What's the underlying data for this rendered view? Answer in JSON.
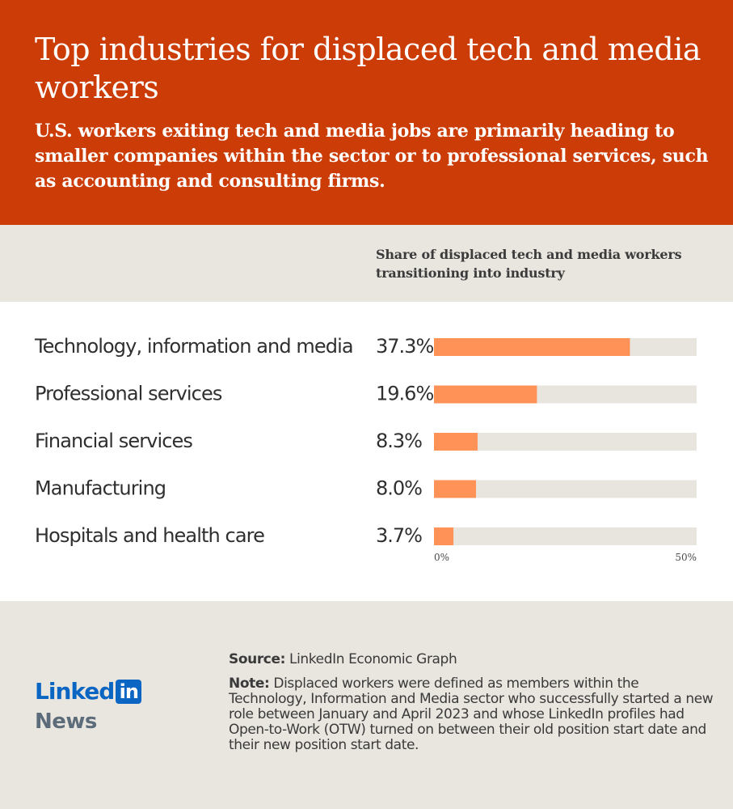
{
  "header": {
    "title": "Top industries for displaced tech and media workers",
    "subtitle": "U.S. workers exiting tech and media jobs are primarily heading to smaller companies within the sector or to professional services, such as accounting and consulting firms."
  },
  "column_header": "Share of displaced tech and media workers transitioning into industry",
  "chart_data": {
    "type": "bar",
    "orientation": "horizontal",
    "categories": [
      "Technology, information and media",
      "Professional services",
      "Financial services",
      "Manufacturing",
      "Hospitals and health care"
    ],
    "values": [
      37.3,
      19.6,
      8.3,
      8.0,
      3.7
    ],
    "value_labels": [
      "37.3%",
      "19.6%",
      "8.3%",
      "8.0%",
      "3.7%"
    ],
    "xlim": [
      0,
      50
    ],
    "x_ticks": [
      "0%",
      "50%"
    ],
    "colors": {
      "bar": "#ff9256",
      "track": "#e8e4de"
    }
  },
  "footer": {
    "source_label": "Source:",
    "source_text": "LinkedIn Economic Graph",
    "note_label": "Note:",
    "note_text": "Displaced workers were defined as members within the Technology, Information and Media sector who successfully started a new role between January and April 2023 and whose LinkedIn profiles had Open-to-Work (OTW) turned on between their old position start date and their new position start date."
  },
  "logo": {
    "word": "Linked",
    "box": "in",
    "sub": "News"
  },
  "colors": {
    "header_bg": "#cc3c06",
    "band_bg": "#e9e5df",
    "brand_blue": "#0a66c2"
  }
}
